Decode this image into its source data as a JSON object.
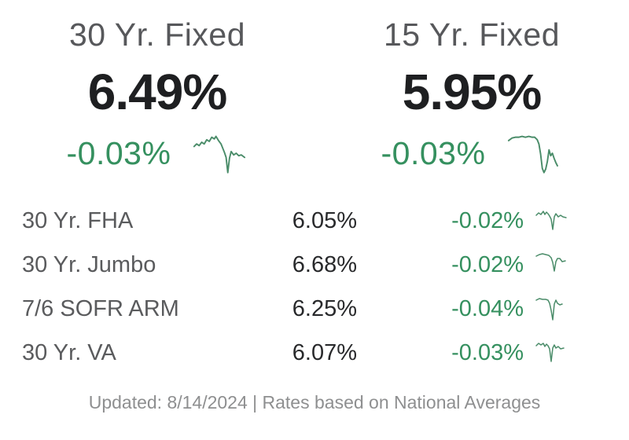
{
  "hero": [
    {
      "label": "30 Yr. Fixed",
      "rate": "6.49%",
      "change": "-0.03%"
    },
    {
      "label": "15 Yr. Fixed",
      "rate": "5.95%",
      "change": "-0.03%"
    }
  ],
  "rows": [
    {
      "label": "30 Yr. FHA",
      "rate": "6.05%",
      "change": "-0.02%"
    },
    {
      "label": "30 Yr. Jumbo",
      "rate": "6.68%",
      "change": "-0.02%"
    },
    {
      "label": "7/6 SOFR ARM",
      "rate": "6.25%",
      "change": "-0.04%"
    },
    {
      "label": "30 Yr. VA",
      "rate": "6.07%",
      "change": "-0.03%"
    }
  ],
  "footer": {
    "text": "Updated: 8/14/2024 | Rates based on National Averages"
  },
  "colors": {
    "change_green": "#35905f",
    "sparkline_green": "#4a8c69",
    "rate_dark": "#1e1f21",
    "label_gray": "#57585b",
    "footer_gray": "#8e8f90"
  },
  "sparklines": {
    "hero_30yr_fixed": "3,20 6,17 9,19 12,15 15,17 18,12 21,14 24,9 27,11 29,8 32,13 35,17 37,22 39,27 41,33 43,51 45,34 47,26 50,30 53,28 56,31 59,30 63,33",
    "hero_15yr_fixed": "3,13 7,10 11,9 15,9 19,8 23,9 27,8 31,9 34,9 37,12 39,17 41,29 43,46 45,51 47,47 49,38 51,24 53,31 55,28 57,34 59,39 61,43",
    "row_30yr_fha": "3,13 6,10 9,12 12,8 14,12 16,9 18,11 20,14 22,18 24,31 26,15 28,11 31,15 34,13 37,15 41,16",
    "row_30yr_jumbo": "3,9 7,7 11,6 15,7 19,8 22,11 24,17 26,28 28,16 30,12 33,12 36,16 40,15",
    "row_76_sofr_arm": "3,9 7,7 11,8 15,8 18,9 20,13 22,22 24,34 26,14 28,9 30,13 33,15 36,14",
    "row_30yr_va": "3,11 6,8 9,10 12,8 14,12 16,9 18,11 20,15 22,31 24,14 26,10 28,14 31,12 34,15 38,14"
  }
}
